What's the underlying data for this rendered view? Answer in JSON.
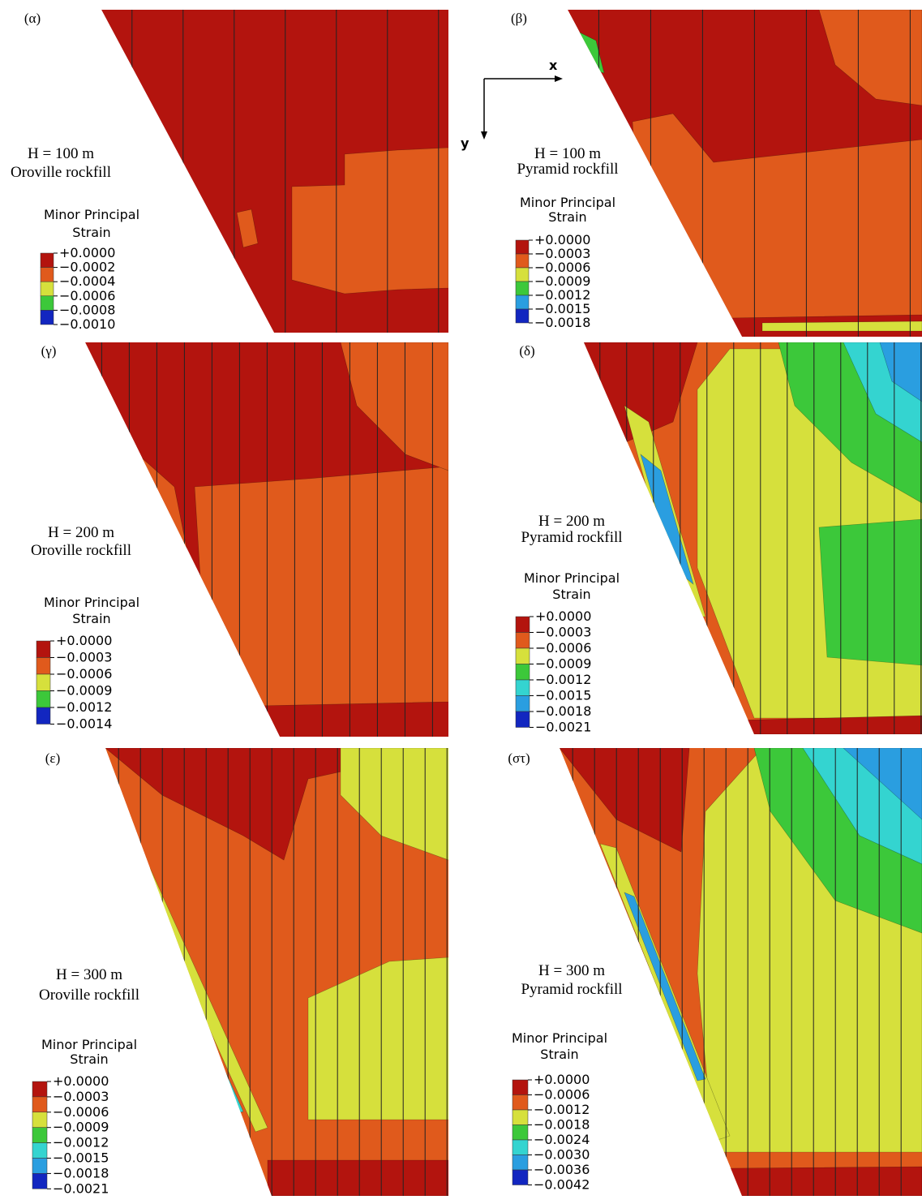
{
  "figure": {
    "axes": {
      "x": "x",
      "y": "y"
    },
    "panels": [
      {
        "label": "(α)",
        "height": "H = 100 m",
        "material": "Oroville rockfill",
        "legend": {
          "title": [
            "Minor Principal",
            "Strain"
          ],
          "labels": [
            "+0.0000",
            "−0.0002",
            "−0.0004",
            "−0.0006",
            "−0.0008",
            "−0.0010"
          ],
          "colors": [
            "#b3140e",
            "#e05a1c",
            "#d6e03c",
            "#3cc83a",
            "#1226c0"
          ]
        }
      },
      {
        "label": "(β)",
        "height": "H = 100 m",
        "material": "Pyramid rockfill",
        "legend": {
          "title": [
            "Minor Principal",
            "Strain"
          ],
          "labels": [
            "+0.0000",
            "−0.0003",
            "−0.0006",
            "−0.0009",
            "−0.0012",
            "−0.0015",
            "−0.0018"
          ],
          "colors": [
            "#b3140e",
            "#e05a1c",
            "#d6e03c",
            "#3cc83a",
            "#2a9ee0",
            "#1226c0"
          ]
        }
      },
      {
        "label": "(γ)",
        "height": "H = 200 m",
        "material": "Oroville rockfill",
        "legend": {
          "title": [
            "Minor Principal",
            "Strain"
          ],
          "labels": [
            "+0.0000",
            "−0.0003",
            "−0.0006",
            "−0.0009",
            "−0.0012",
            "−0.0014"
          ],
          "colors": [
            "#b3140e",
            "#e05a1c",
            "#d6e03c",
            "#3cc83a",
            "#1226c0"
          ]
        }
      },
      {
        "label": "(δ)",
        "height": "H = 200 m",
        "material": "Pyramid rockfill",
        "legend": {
          "title": [
            "Minor Principal",
            "Strain"
          ],
          "labels": [
            "+0.0000",
            "−0.0003",
            "−0.0006",
            "−0.0009",
            "−0.0012",
            "−0.0015",
            "−0.0018",
            "−0.0021"
          ],
          "colors": [
            "#b3140e",
            "#e05a1c",
            "#d6e03c",
            "#3cc83a",
            "#34d4d0",
            "#2a9ee0",
            "#1226c0"
          ]
        }
      },
      {
        "label": "(ε)",
        "height": "H = 300 m",
        "material": "Oroville rockfill",
        "legend": {
          "title": [
            "Minor Principal",
            "Strain"
          ],
          "labels": [
            "+0.0000",
            "−0.0003",
            "−0.0006",
            "−0.0009",
            "−0.0012",
            "−0.0015",
            "−0.0018",
            "−0.0021"
          ],
          "colors": [
            "#b3140e",
            "#e05a1c",
            "#d6e03c",
            "#3cc83a",
            "#34d4d0",
            "#2a9ee0",
            "#1226c0"
          ]
        }
      },
      {
        "label": "(στ)",
        "height": "H = 300 m",
        "material": "Pyramid rockfill",
        "legend": {
          "title": [
            "Minor Principal",
            "Strain"
          ],
          "labels": [
            "+0.0000",
            "−0.0006",
            "−0.0012",
            "−0.0018",
            "−0.0024",
            "−0.0030",
            "−0.0036",
            "−0.0042"
          ],
          "colors": [
            "#b3140e",
            "#e05a1c",
            "#d6e03c",
            "#3cc83a",
            "#34d4d0",
            "#2a9ee0",
            "#1226c0"
          ]
        }
      }
    ]
  }
}
